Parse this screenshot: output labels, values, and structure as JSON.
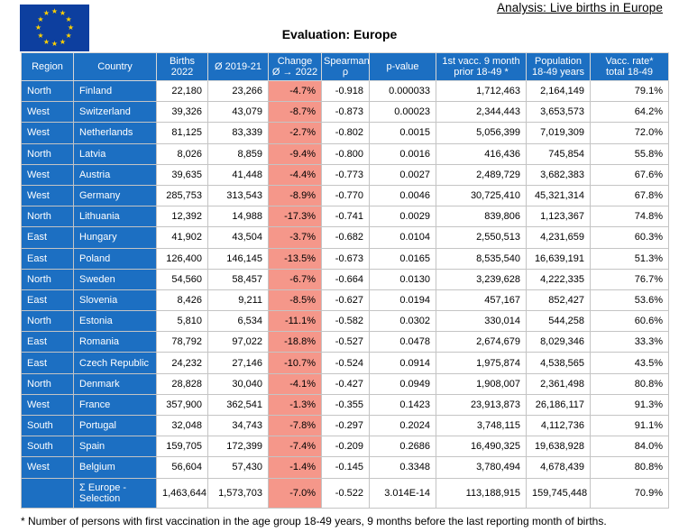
{
  "header": {
    "analysis_link": "Analysis: Live births in Europe",
    "title": "Evaluation: Europe"
  },
  "table": {
    "columns": [
      {
        "line1": "Region",
        "line2": ""
      },
      {
        "line1": "Country",
        "line2": ""
      },
      {
        "line1": "Births",
        "line2": "2022"
      },
      {
        "line1": "Ø 2019-21",
        "line2": ""
      },
      {
        "line1": "Change",
        "line2": "Ø → 2022"
      },
      {
        "line1": "Spearman",
        "line2": "ρ"
      },
      {
        "line1": "p-value",
        "line2": ""
      },
      {
        "line1": "1st vacc. 9 month",
        "line2": "prior 18-49 *"
      },
      {
        "line1": "Population",
        "line2": "18-49 years"
      },
      {
        "line1": "Vacc. rate*",
        "line2": "total 18-49"
      }
    ],
    "rows": [
      [
        "North",
        "Finland",
        "22,180",
        "23,266",
        "-4.7%",
        "-0.918",
        "0.000033",
        "1,712,463",
        "2,164,149",
        "79.1%"
      ],
      [
        "West",
        "Switzerland",
        "39,326",
        "43,079",
        "-8.7%",
        "-0.873",
        "0.00023",
        "2,344,443",
        "3,653,573",
        "64.2%"
      ],
      [
        "West",
        "Netherlands",
        "81,125",
        "83,339",
        "-2.7%",
        "-0.802",
        "0.0015",
        "5,056,399",
        "7,019,309",
        "72.0%"
      ],
      [
        "North",
        "Latvia",
        "8,026",
        "8,859",
        "-9.4%",
        "-0.800",
        "0.0016",
        "416,436",
        "745,854",
        "55.8%"
      ],
      [
        "West",
        "Austria",
        "39,635",
        "41,448",
        "-4.4%",
        "-0.773",
        "0.0027",
        "2,489,729",
        "3,682,383",
        "67.6%"
      ],
      [
        "West",
        "Germany",
        "285,753",
        "313,543",
        "-8.9%",
        "-0.770",
        "0.0046",
        "30,725,410",
        "45,321,314",
        "67.8%"
      ],
      [
        "North",
        "Lithuania",
        "12,392",
        "14,988",
        "-17.3%",
        "-0.741",
        "0.0029",
        "839,806",
        "1,123,367",
        "74.8%"
      ],
      [
        "East",
        "Hungary",
        "41,902",
        "43,504",
        "-3.7%",
        "-0.682",
        "0.0104",
        "2,550,513",
        "4,231,659",
        "60.3%"
      ],
      [
        "East",
        "Poland",
        "126,400",
        "146,145",
        "-13.5%",
        "-0.673",
        "0.0165",
        "8,535,540",
        "16,639,191",
        "51.3%"
      ],
      [
        "North",
        "Sweden",
        "54,560",
        "58,457",
        "-6.7%",
        "-0.664",
        "0.0130",
        "3,239,628",
        "4,222,335",
        "76.7%"
      ],
      [
        "East",
        "Slovenia",
        "8,426",
        "9,211",
        "-8.5%",
        "-0.627",
        "0.0194",
        "457,167",
        "852,427",
        "53.6%"
      ],
      [
        "North",
        "Estonia",
        "5,810",
        "6,534",
        "-11.1%",
        "-0.582",
        "0.0302",
        "330,014",
        "544,258",
        "60.6%"
      ],
      [
        "East",
        "Romania",
        "78,792",
        "97,022",
        "-18.8%",
        "-0.527",
        "0.0478",
        "2,674,679",
        "8,029,346",
        "33.3%"
      ],
      [
        "East",
        "Czech Republic",
        "24,232",
        "27,146",
        "-10.7%",
        "-0.524",
        "0.0914",
        "1,975,874",
        "4,538,565",
        "43.5%"
      ],
      [
        "North",
        "Denmark",
        "28,828",
        "30,040",
        "-4.1%",
        "-0.427",
        "0.0949",
        "1,908,007",
        "2,361,498",
        "80.8%"
      ],
      [
        "West",
        "France",
        "357,900",
        "362,541",
        "-1.3%",
        "-0.355",
        "0.1423",
        "23,913,873",
        "26,186,117",
        "91.3%"
      ],
      [
        "South",
        "Portugal",
        "32,048",
        "34,743",
        "-7.8%",
        "-0.297",
        "0.2024",
        "3,748,115",
        "4,112,736",
        "91.1%"
      ],
      [
        "South",
        "Spain",
        "159,705",
        "172,399",
        "-7.4%",
        "-0.209",
        "0.2686",
        "16,490,325",
        "19,638,928",
        "84.0%"
      ],
      [
        "West",
        "Belgium",
        "56,604",
        "57,430",
        "-1.4%",
        "-0.145",
        "0.3348",
        "3,780,494",
        "4,678,439",
        "80.8%"
      ]
    ],
    "total": [
      "",
      "Σ Europe - Selection",
      "1,463,644",
      "1,573,703",
      "-7.0%",
      "-0.522",
      "3.014E-14",
      "113,188,915",
      "159,745,448",
      "70.9%"
    ]
  },
  "footnote": "* Number of persons with first vaccination in the age group 18-49 years, 9 months before the last reporting month of births.",
  "colors": {
    "header_blue": "#1c6fc2",
    "change_highlight": "#f5978a",
    "flag_blue": "#0d3f9f",
    "flag_star": "#ffd200"
  },
  "icons": {
    "flag": "eu-flag-icon"
  }
}
